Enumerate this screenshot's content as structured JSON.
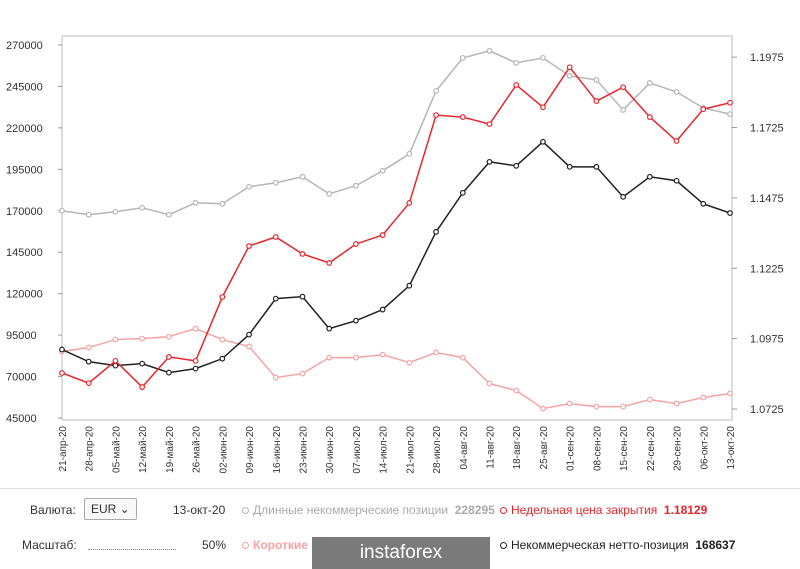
{
  "chart_data": {
    "type": "line",
    "categories": [
      "21-апр-20",
      "28-апр-20",
      "05-май-20",
      "12-май-20",
      "19-май-20",
      "26-май-20",
      "02-июн-20",
      "09-июн-20",
      "16-июн-20",
      "23-июн-20",
      "30-июн-20",
      "07-июл-20",
      "14-июл-20",
      "21-июл-20",
      "28-июл-20",
      "04-авг-20",
      "11-авг-20",
      "18-авг-20",
      "25-авг-20",
      "01-сен-20",
      "08-сен-20",
      "15-сен-20",
      "22-сен-20",
      "29-сен-20",
      "06-окт-20",
      "13-окт-20"
    ],
    "series": [
      {
        "name": "Длинные некоммерческие позиции",
        "color": "#b5b5b5",
        "values": [
          170000,
          167600,
          169400,
          171800,
          167600,
          174800,
          174200,
          184500,
          186900,
          190500,
          180200,
          185100,
          194100,
          204300,
          242300,
          262200,
          266400,
          259200,
          262200,
          251300,
          248900,
          230800,
          247100,
          241700,
          232000,
          228295
        ]
      },
      {
        "name": "Короткие некоммерческие позиции",
        "color": "#f5a3a3",
        "values": [
          85100,
          87500,
          92300,
          92900,
          94100,
          98900,
          92300,
          88100,
          69400,
          71800,
          81400,
          81400,
          83200,
          78400,
          84500,
          81400,
          65800,
          61600,
          50700,
          53700,
          51900,
          51900,
          56100,
          53700,
          57400,
          59800
        ]
      },
      {
        "name": "Некоммерческая нетто-позиция",
        "color": "#222222",
        "values": [
          86300,
          79000,
          76600,
          77800,
          72400,
          74800,
          80800,
          95300,
          117000,
          118200,
          98900,
          103700,
          110400,
          124800,
          157300,
          180800,
          199500,
          197100,
          211600,
          196500,
          196500,
          178400,
          190500,
          188100,
          174200,
          168637
        ]
      },
      {
        "name": "Недельная цена закрытия",
        "color": "#e8262a",
        "axis": "y2",
        "values": [
          1.0853,
          1.0817,
          1.0896,
          1.0803,
          1.091,
          1.0896,
          1.1123,
          1.1304,
          1.1336,
          1.1276,
          1.1244,
          1.1311,
          1.1343,
          1.1457,
          1.1769,
          1.1762,
          1.1737,
          1.1876,
          1.1797,
          1.1939,
          1.1819,
          1.1868,
          1.1762,
          1.1677,
          1.179,
          1.18129
        ]
      }
    ],
    "ylim": [
      43800,
      275400
    ],
    "yticks": [
      270000,
      245000,
      220000,
      195000,
      170000,
      145000,
      120000,
      95000,
      70000,
      45000
    ],
    "y2lim": [
      1.0686,
      1.205
    ],
    "y2ticks": [
      1.1975,
      1.1725,
      1.1475,
      1.1225,
      1.0975,
      1.0725
    ]
  },
  "ui": {
    "currency_label": "Валюта:",
    "currency": "EUR",
    "scale_label": "Масштаб:",
    "scale": "50%",
    "logo": "instaforex"
  }
}
